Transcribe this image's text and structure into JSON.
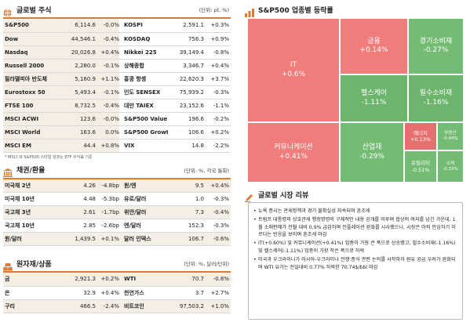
{
  "global_stocks": {
    "title": "글로벌 주식",
    "unit": "(단위: pt, %)",
    "rows": [
      {
        "n1": "S&P500",
        "v1": "6,114.6",
        "c1": "-0.0%",
        "n2": "KOSPI",
        "v2": "2,591.1",
        "c2": "+0.3%"
      },
      {
        "n1": "Dow",
        "v1": "44,546.1",
        "c1": "-0.4%",
        "n2": "KOSDAQ",
        "v2": "756.3",
        "c2": "+0.9%"
      },
      {
        "n1": "Nasdaq",
        "v1": "20,026.8",
        "c1": "+0.4%",
        "n2": "Nikkei 225",
        "v2": "39,149.4",
        "c2": "-0.8%"
      },
      {
        "n1": "Russell 2000",
        "v1": "2,280.0",
        "c1": "-0.1%",
        "n2": "상해종합",
        "v2": "3,346.7",
        "c2": "+0.4%"
      },
      {
        "n1": "필라델피아 반도체",
        "v1": "5,160.9",
        "c1": "+1.1%",
        "n2": "홍콩 항셍",
        "v2": "22,620.3",
        "c2": "+3.7%"
      },
      {
        "n1": "Eurostoxx 50",
        "v1": "5,493.4",
        "c1": "-0.1%",
        "n2": "인도 SENSEX",
        "v2": "75,939.2",
        "c2": "-0.3%"
      },
      {
        "n1": "FTSE 100",
        "v1": "8,732.5",
        "c1": "-0.4%",
        "n2": "대만 TAIEX",
        "v2": "23,152.6",
        "c2": "-1.1%"
      },
      {
        "n1": "MSCI ACWI",
        "v1": "123.6",
        "c1": "-0.0%",
        "n2": "S&P500 Value",
        "v2": "196.6",
        "c2": "-0.2%"
      },
      {
        "n1": "MSCI World",
        "v1": "163.6",
        "c1": "0.0%",
        "n2": "S&P500 Growth",
        "v2": "106.6",
        "c2": "+0.2%"
      },
      {
        "n1": "MSCI EM",
        "v1": "44.4",
        "c1": "+0.8%",
        "n2": "VIX",
        "v2": "14.8",
        "c2": "-2.2%"
      }
    ],
    "note": "* MSCI 와 S&P500 스타일 성과는 ETF 수익률 기준"
  },
  "bonds_fx": {
    "title": "채권/환율",
    "unit": "(단위: %, 각국 통화)",
    "rows": [
      {
        "n1": "미국채 2년",
        "v1": "4.26",
        "c1": "-4.8bp",
        "n2": "원/엔",
        "v2": "9.5",
        "c2": "+0.4%"
      },
      {
        "n1": "미국채 10년",
        "v1": "4.48",
        "c1": "-5.3bp",
        "n2": "유로/달러",
        "v2": "1.0",
        "c2": "-0.3%"
      },
      {
        "n1": "국고채 3년",
        "v1": "2.61",
        "c1": "-1.7bp",
        "n2": "위안/달러",
        "v2": "7.3",
        "c2": "-0.4%"
      },
      {
        "n1": "국고채 10년",
        "v1": "2.85",
        "c1": "-2.6bp",
        "n2": "엔/달러",
        "v2": "152.3",
        "c2": "-0.3%"
      },
      {
        "n1": "원/달러",
        "v1": "1,439.5",
        "c1": "+0.1%",
        "n2": "달러 인덱스",
        "v2": "106.7",
        "c2": "-0.6%"
      }
    ]
  },
  "commodities": {
    "title": "원자재/상품",
    "unit": "(단위: %, 달러/단위)",
    "rows": [
      {
        "n1": "금",
        "v1": "2,921.3",
        "c1": "+0.2%",
        "n2": "WTI",
        "v2": "70.7",
        "c2": "-0.8%"
      },
      {
        "n1": "은",
        "v1": "32.9",
        "c1": "+0.4%",
        "n2": "천연가스",
        "v2": "3.7",
        "c2": "+2.7%"
      },
      {
        "n1": "구리",
        "v1": "466.5",
        "c1": "-2.4%",
        "n2": "비트코인",
        "v2": "97,503.2",
        "c2": "+1.0%"
      }
    ]
  },
  "sector": {
    "title": "S&P500 업종별 등락률",
    "tiles": [
      {
        "name": "IT",
        "val": "+0.6%"
      },
      {
        "name": "금융",
        "val": "+0.14%"
      },
      {
        "name": "경기소비재",
        "val": "-0.27%"
      },
      {
        "name": "헬스케어",
        "val": "-1.11%"
      },
      {
        "name": "필수소비재",
        "val": "-1.16%"
      },
      {
        "name": "커뮤니케이션",
        "val": "+0.41%"
      },
      {
        "name": "산업재",
        "val": "-0.29%"
      },
      {
        "name": "에너지",
        "val": "+0.13%"
      },
      {
        "name": "부동산",
        "val": "-0.44%"
      },
      {
        "name": "유틸리티",
        "val": "-0.51%"
      },
      {
        "name": "소재",
        "val": "-0.33%"
      }
    ]
  },
  "review": {
    "title": "글로벌 시장 리뷰",
    "items": [
      "뉴욕 증시는 관세정책과 경기 불확실성 지속되며 혼조세",
      "트럼프 대통령의 상호관세 행정명령의 구체적인 내용 공개를 미루며 협상의 여지를 남긴 가운데, 1월 소매판매가 전월 대비 0.9% 급감하며 인플레이션 완화를 시사했으나, 시장은 아직 안심하기 이르다는 반응을 보이며 혼조세 마감",
      "IT(+0.60%) 및 커뮤니케이션(+0.41%) 업종이 가장 큰 폭으로 상승했고, 필수소비재(-1.16%) 및 헬스케어(-1.11%) 업종이 가장 작은 폭으로 하락",
      "미국과 우크라이나가 러시아-우크라이나 전쟁 종식 관련 논의를 시작하자 원유 공급 우려가 완화되며 WTI 유가는 전일대비 0.77% 하락한 70.74$/bbl 마감"
    ]
  },
  "colors": {
    "accent": "#e07a2c",
    "up": "#f07c7c",
    "down": "#74bb74"
  }
}
